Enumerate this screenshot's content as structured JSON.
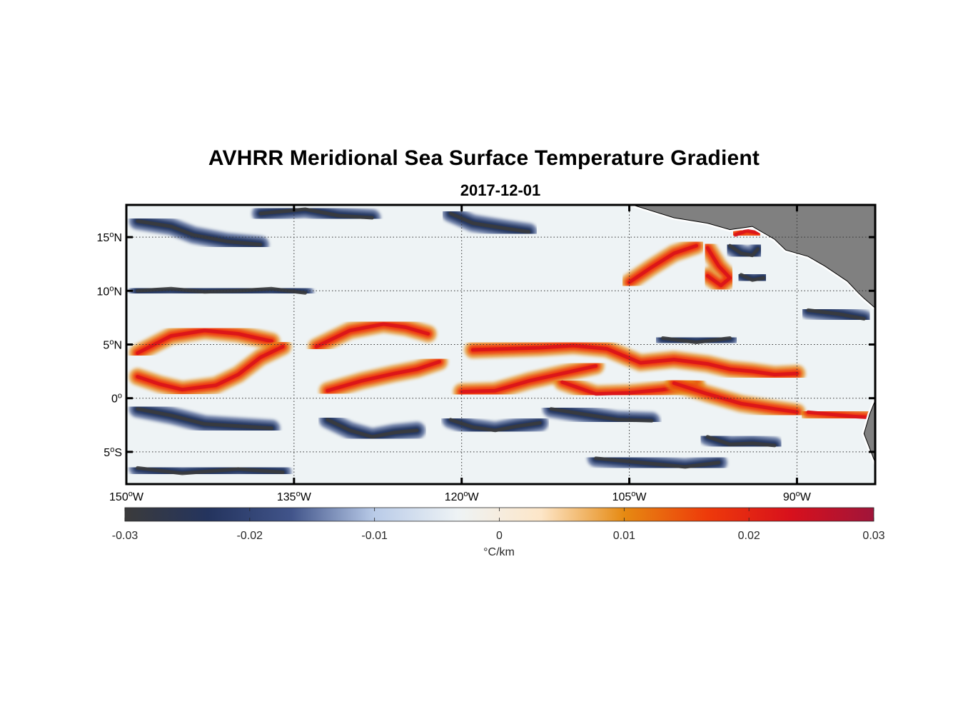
{
  "title": "AVHRR Meridional Sea Surface Temperature Gradient",
  "date": "2017-12-01",
  "map": {
    "lon_range": [
      -150,
      -83
    ],
    "lat_range": [
      -8,
      18
    ],
    "lat_ticks": [
      {
        "value": 15,
        "num": "15",
        "hemi": "N"
      },
      {
        "value": 10,
        "num": "10",
        "hemi": "N"
      },
      {
        "value": 5,
        "num": "5",
        "hemi": "N"
      },
      {
        "value": 0,
        "num": "0",
        "hemi": ""
      },
      {
        "value": -5,
        "num": "5",
        "hemi": "S"
      }
    ],
    "lon_ticks": [
      {
        "value": -150,
        "num": "150",
        "hemi": "W"
      },
      {
        "value": -135,
        "num": "135",
        "hemi": "W"
      },
      {
        "value": -120,
        "num": "120",
        "hemi": "W"
      },
      {
        "value": -105,
        "num": "105",
        "hemi": "W"
      },
      {
        "value": -90,
        "num": "90",
        "hemi": "W"
      }
    ],
    "degree_symbol": "o",
    "land_color": "#808080",
    "grid": "dotted"
  },
  "colorbar": {
    "range": [
      -0.03,
      0.03
    ],
    "ticks": [
      "-0.03",
      "-0.02",
      "-0.01",
      "0",
      "0.01",
      "0.02",
      "0.03"
    ],
    "unit": "°C/km",
    "colors": [
      "#3b3b3b",
      "#24345e",
      "#41548a",
      "#b9cbe8",
      "#eef3f5",
      "#fde6c8",
      "#e68a12",
      "#ee3a0a",
      "#d8101c",
      "#a0153a"
    ]
  },
  "fronts": [
    {
      "sign": "positive",
      "lons": [
        -149,
        -146,
        -143,
        -140,
        -137
      ],
      "lats": [
        4.2,
        5.8,
        6.3,
        6.0,
        5.3
      ]
    },
    {
      "sign": "positive",
      "lons": [
        -149,
        -147,
        -145,
        -142,
        -140,
        -138,
        -136
      ],
      "lats": [
        2.0,
        1.3,
        0.8,
        1.2,
        2.2,
        3.8,
        4.8
      ]
    },
    {
      "sign": "positive",
      "lons": [
        -133,
        -130,
        -127,
        -125,
        -123
      ],
      "lats": [
        4.8,
        6.3,
        6.9,
        6.6,
        6.0
      ]
    },
    {
      "sign": "positive",
      "lons": [
        -132,
        -129,
        -126,
        -124,
        -122
      ],
      "lats": [
        0.7,
        1.6,
        2.3,
        2.7,
        3.4
      ]
    },
    {
      "sign": "positive",
      "lons": [
        -120,
        -117,
        -114,
        -111,
        -108
      ],
      "lats": [
        0.6,
        0.7,
        1.6,
        2.3,
        3.0
      ]
    },
    {
      "sign": "positive",
      "lons": [
        -111,
        -108,
        -105,
        -102,
        -99
      ],
      "lats": [
        1.5,
        0.4,
        0.5,
        0.8,
        1.3
      ]
    },
    {
      "sign": "positive",
      "lons": [
        -101,
        -98,
        -95,
        -92,
        -90
      ],
      "lats": [
        1.4,
        0.4,
        -0.5,
        -1.0,
        -1.3
      ]
    },
    {
      "sign": "positive",
      "lons": [
        -89,
        -87,
        -85,
        -83.5
      ],
      "lats": [
        -1.3,
        -1.5,
        -1.7,
        -1.8
      ]
    },
    {
      "sign": "positive",
      "lons": [
        -119,
        -116,
        -113,
        -110,
        -107,
        -104,
        -101,
        -98,
        -96,
        -94,
        -92,
        -90
      ],
      "lats": [
        4.5,
        4.6,
        4.7,
        4.9,
        4.6,
        3.3,
        3.6,
        3.2,
        2.7,
        2.5,
        2.2,
        2.3
      ]
    },
    {
      "sign": "positive",
      "lons": [
        -105,
        -103,
        -101,
        -99
      ],
      "lats": [
        10.8,
        12.2,
        13.5,
        14.2
      ]
    },
    {
      "sign": "positive",
      "lons": [
        -98,
        -97,
        -96,
        -96.8,
        -98
      ],
      "lats": [
        14.0,
        12.3,
        11.2,
        10.5,
        11.4
      ]
    },
    {
      "sign": "positive",
      "lons": [
        -95.5,
        -94.5,
        -93.5
      ],
      "lats": [
        15.2,
        15.6,
        15.4
      ]
    },
    {
      "sign": "negative",
      "lons": [
        -149,
        -146,
        -143,
        -140,
        -137
      ],
      "lats": [
        -1.0,
        -1.6,
        -2.4,
        -2.6,
        -2.8
      ]
    },
    {
      "sign": "negative",
      "lons": [
        -132,
        -130,
        -128,
        -126,
        -124
      ],
      "lats": [
        -2.0,
        -3.0,
        -3.6,
        -3.2,
        -3.0
      ]
    },
    {
      "sign": "negative",
      "lons": [
        -121,
        -119,
        -117,
        -115,
        -113
      ],
      "lats": [
        -2.0,
        -2.7,
        -3.0,
        -2.6,
        -2.3
      ]
    },
    {
      "sign": "negative",
      "lons": [
        -112,
        -109,
        -106,
        -103
      ],
      "lats": [
        -1.0,
        -1.5,
        -2.0,
        -2.1
      ]
    },
    {
      "sign": "negative",
      "lons": [
        -96,
        -95,
        -94,
        -93.5
      ],
      "lats": [
        14.2,
        13.5,
        13.3,
        13.9
      ]
    },
    {
      "sign": "negative",
      "lons": [
        -95,
        -94,
        -93
      ],
      "lats": [
        11.5,
        11.0,
        11.2
      ]
    },
    {
      "sign": "negative",
      "lons": [
        -149,
        -146,
        -144,
        -141,
        -138
      ],
      "lats": [
        16.5,
        16.0,
        15.2,
        14.6,
        14.3
      ]
    },
    {
      "sign": "negative",
      "lons": [
        -149,
        -146,
        -143,
        -140,
        -137,
        -134
      ],
      "lats": [
        10.0,
        10.2,
        9.9,
        10.0,
        10.2,
        9.8
      ]
    },
    {
      "sign": "negative",
      "lons": [
        -138,
        -134,
        -131,
        -128
      ],
      "lats": [
        17.2,
        17.6,
        17.0,
        16.8
      ]
    },
    {
      "sign": "negative",
      "lons": [
        -121,
        -119,
        -116,
        -114
      ],
      "lats": [
        17.2,
        16.3,
        15.8,
        15.5
      ]
    },
    {
      "sign": "negative",
      "lons": [
        -102,
        -99,
        -96
      ],
      "lats": [
        5.6,
        5.2,
        5.6
      ]
    },
    {
      "sign": "negative",
      "lons": [
        -149,
        -145,
        -140,
        -136
      ],
      "lats": [
        -6.5,
        -7.0,
        -6.6,
        -6.9
      ]
    },
    {
      "sign": "negative",
      "lons": [
        -108,
        -104,
        -100,
        -97
      ],
      "lats": [
        -5.6,
        -6.0,
        -6.4,
        -6.0
      ]
    },
    {
      "sign": "negative",
      "lons": [
        -98,
        -96,
        -94,
        -92
      ],
      "lats": [
        -3.6,
        -4.3,
        -4.2,
        -4.4
      ]
    },
    {
      "sign": "negative",
      "lons": [
        -89,
        -86,
        -84
      ],
      "lats": [
        8.2,
        7.8,
        7.4
      ]
    }
  ],
  "land": [
    {
      "lons": [
        -104.7,
        -101,
        -98,
        -96,
        -94,
        -92,
        -91,
        -89,
        -87.5,
        -85.5,
        -84.5,
        -84,
        -83
      ],
      "lats": [
        18,
        16.8,
        16.3,
        15.7,
        16.0,
        14.8,
        13.8,
        13.2,
        12.3,
        10.9,
        9.8,
        9.3,
        8.4
      ]
    },
    {
      "lons": [
        -83,
        -83.5,
        -84,
        -83
      ],
      "lats": [
        -0.2,
        -1.5,
        -3.3,
        -6.0
      ]
    }
  ]
}
